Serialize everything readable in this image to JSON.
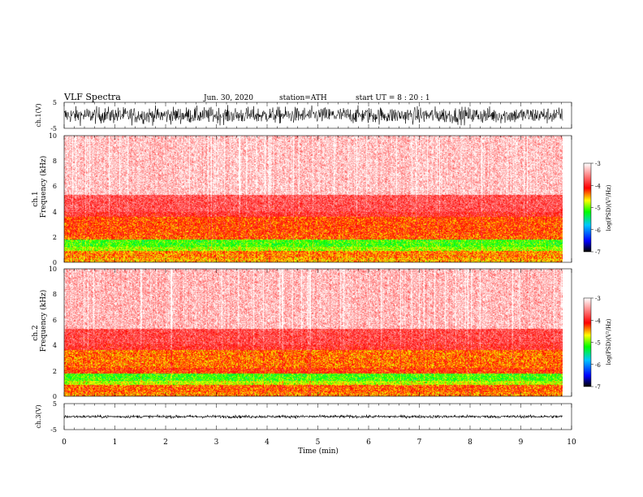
{
  "header": {
    "title": "VLF  Spectra",
    "date": "Jun. 30, 2020",
    "station": "station=ATH",
    "start": "start  UT  =    8  : 20 : 1"
  },
  "chart_data": [
    {
      "type": "line",
      "id": "ch1-waveform",
      "ylabel": "ch.1(V)",
      "yticks": [
        "5",
        "-5"
      ],
      "ylim": [
        -5,
        5
      ],
      "xlim": [
        0,
        10
      ],
      "amplitude": 2.2,
      "color": "#000000"
    },
    {
      "type": "heatmap",
      "id": "ch1-spectrogram",
      "ylabel": [
        "ch.1",
        "Frequency  (kHz)"
      ],
      "yticks": [
        "0",
        "2",
        "4",
        "6",
        "8",
        "10"
      ],
      "ylim": [
        0,
        10
      ],
      "xlim": [
        0,
        9.83
      ],
      "bands_khz": [
        {
          "from": 0.0,
          "to": 0.3,
          "level": -4.5
        },
        {
          "from": 0.3,
          "to": 0.9,
          "level": -4.4
        },
        {
          "from": 0.9,
          "to": 1.2,
          "level": -4.9
        },
        {
          "from": 1.2,
          "to": 1.8,
          "level": -5.1
        },
        {
          "from": 1.8,
          "to": 2.2,
          "level": -4.3
        },
        {
          "from": 2.2,
          "to": 3.6,
          "level": -4.25
        },
        {
          "from": 3.6,
          "to": 4.0,
          "level": -3.9
        },
        {
          "from": 4.0,
          "to": 5.3,
          "level": -3.75
        },
        {
          "from": 5.3,
          "to": 10.0,
          "level": -3.25
        }
      ]
    },
    {
      "type": "heatmap",
      "id": "ch2-spectrogram",
      "ylabel": [
        "ch.2",
        "Frequency  (kHz)"
      ],
      "yticks": [
        "0",
        "2",
        "4",
        "6",
        "8",
        "10"
      ],
      "ylim": [
        0,
        10
      ],
      "xlim": [
        0,
        9.83
      ],
      "bands_khz": [
        {
          "from": 0.0,
          "to": 0.3,
          "level": -4.4
        },
        {
          "from": 0.3,
          "to": 0.9,
          "level": -4.3
        },
        {
          "from": 0.9,
          "to": 1.2,
          "level": -4.8
        },
        {
          "from": 1.2,
          "to": 1.8,
          "level": -5.1
        },
        {
          "from": 1.8,
          "to": 2.2,
          "level": -4.2
        },
        {
          "from": 2.2,
          "to": 3.6,
          "level": -4.35
        },
        {
          "from": 3.6,
          "to": 4.1,
          "level": -3.9
        },
        {
          "from": 4.1,
          "to": 5.3,
          "level": -3.8
        },
        {
          "from": 5.3,
          "to": 10.0,
          "level": -3.3
        }
      ]
    },
    {
      "type": "line",
      "id": "ch3-waveform",
      "ylabel": "ch.3(V)",
      "yticks": [
        "5",
        "-5"
      ],
      "ylim": [
        -5,
        5
      ],
      "xlim": [
        0,
        10
      ],
      "amplitude": 0.4,
      "color": "#000000"
    }
  ],
  "xaxis": {
    "label": "Time  (min)",
    "ticks": [
      "0",
      "1",
      "2",
      "3",
      "4",
      "5",
      "6",
      "7",
      "8",
      "9",
      "10"
    ],
    "range": [
      0,
      10
    ]
  },
  "colorbar": {
    "label": "log(PSD)(V²/Hz)",
    "ticks": [
      "-3",
      "-4",
      "-5",
      "-6",
      "-7"
    ],
    "range": [
      -7,
      -3
    ],
    "stops": [
      {
        "at": 0.0,
        "color": "#000000"
      },
      {
        "at": 0.12,
        "color": "#0000ff"
      },
      {
        "at": 0.3,
        "color": "#00c8ff"
      },
      {
        "at": 0.45,
        "color": "#00ff00"
      },
      {
        "at": 0.58,
        "color": "#ffff00"
      },
      {
        "at": 0.72,
        "color": "#ff0000"
      },
      {
        "at": 1.0,
        "color": "#ffffff"
      }
    ]
  }
}
